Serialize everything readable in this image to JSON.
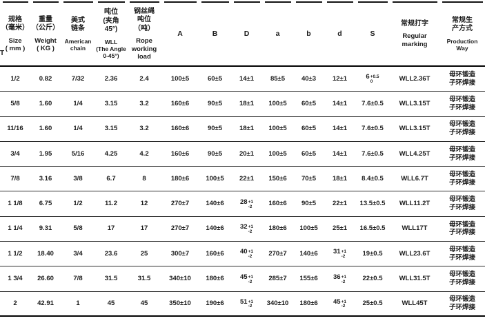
{
  "page": {
    "left_edge_fragment": "T"
  },
  "colors": {
    "text": "#1a1a1a",
    "line": "#111111",
    "background": "#ffffff"
  },
  "table": {
    "columns": [
      {
        "id": "size",
        "zh": "规格\n（毫米）",
        "en": "Size\n( mm )"
      },
      {
        "id": "weight",
        "zh": "重量\n（公斤）",
        "en": "Weight\n( KG )"
      },
      {
        "id": "american-chain",
        "zh": "美式\n链条",
        "en": "American\nchain"
      },
      {
        "id": "wll",
        "zh": "吨位\n(夹角\n45°)",
        "en": "WLL\n(The Angle\n0-45°)"
      },
      {
        "id": "rope-load",
        "zh": "钢丝绳\n吨位\n（吨）",
        "en": "Rope\nworking\nload"
      },
      {
        "id": "A",
        "en": "A"
      },
      {
        "id": "B",
        "en": "B"
      },
      {
        "id": "D",
        "en": "D"
      },
      {
        "id": "a",
        "en": "a"
      },
      {
        "id": "b",
        "en": "b"
      },
      {
        "id": "d",
        "en": "d"
      },
      {
        "id": "S",
        "en": "S"
      },
      {
        "id": "regular-marking",
        "zh": "常规打字",
        "en": "Regular\nmarking"
      },
      {
        "id": "production-way",
        "zh": "常规生\n产方式",
        "en": "Production\nWay"
      }
    ],
    "rows": [
      [
        "1/2",
        "0.82",
        "7/32",
        "2.36",
        "2.4",
        "100±5",
        "60±5",
        "14±1",
        "85±5",
        "40±3",
        "12±1",
        "6[[+0.5|0]]",
        "WLL2.36T",
        "母环锻造\n子环焊接"
      ],
      [
        "5/8",
        "1.60",
        "1/4",
        "3.15",
        "3.2",
        "160±6",
        "90±5",
        "18±1",
        "100±5",
        "60±5",
        "14±1",
        "7.6±0.5",
        "WLL3.15T",
        "母环锻造\n子环焊接"
      ],
      [
        "11/16",
        "1.60",
        "1/4",
        "3.15",
        "3.2",
        "160±6",
        "90±5",
        "18±1",
        "100±5",
        "60±5",
        "14±1",
        "7.6±0.5",
        "WLL3.15T",
        "母环锻造\n子环焊接"
      ],
      [
        "3/4",
        "1.95",
        "5/16",
        "4.25",
        "4.2",
        "160±6",
        "90±5",
        "20±1",
        "100±5",
        "60±5",
        "14±1",
        "7.6±0.5",
        "WLL4.25T",
        "母环锻造\n子环焊接"
      ],
      [
        "7/8",
        "3.16",
        "3/8",
        "6.7",
        "8",
        "180±6",
        "100±5",
        "22±1",
        "150±6",
        "70±5",
        "18±1",
        "8.4±0.5",
        "WLL6.7T",
        "母环锻造\n子环焊接"
      ],
      [
        "1 1/8",
        "6.75",
        "1/2",
        "11.2",
        "12",
        "270±7",
        "140±6",
        "28[[+1|-2]]",
        "160±6",
        "90±5",
        "22±1",
        "13.5±0.5",
        "WLL11.2T",
        "母环锻造\n子环焊接"
      ],
      [
        "1 1/4",
        "9.31",
        "5/8",
        "17",
        "17",
        "270±7",
        "140±6",
        "32[[+1|-2]]",
        "180±6",
        "100±5",
        "25±1",
        "16.5±0.5",
        "WLL17T",
        "母环锻造\n子环焊接"
      ],
      [
        "1 1/2",
        "18.40",
        "3/4",
        "23.6",
        "25",
        "300±7",
        "160±6",
        "40[[+1|-2]]",
        "270±7",
        "140±6",
        "31[[+1|-2]]",
        "19±0.5",
        "WLL23.6T",
        "母环锻造\n子环焊接"
      ],
      [
        "1 3/4",
        "26.60",
        "7/8",
        "31.5",
        "31.5",
        "340±10",
        "180±6",
        "45[[+1|-2]]",
        "285±7",
        "155±6",
        "36[[+1|-2]]",
        "22±0.5",
        "WLL31.5T",
        "母环锻造\n子环焊接"
      ],
      [
        "2",
        "42.91",
        "1",
        "45",
        "45",
        "350±10",
        "190±6",
        "51[[+1|-2]]",
        "340±10",
        "180±6",
        "45[[+1|-2]]",
        "25±0.5",
        "WLL45T",
        "母环锻造\n子环焊接"
      ]
    ]
  }
}
